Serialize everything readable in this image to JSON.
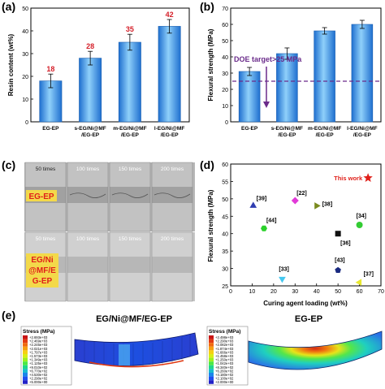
{
  "panel_letters": {
    "a": "(a)",
    "b": "(b)",
    "c": "(c)",
    "d": "(d)",
    "e": "(e)"
  },
  "colors": {
    "bar": "#2f86db",
    "bar_light": "#8cc6f5",
    "value_text": "#d5202a",
    "target_line": "#6a2b8a",
    "marker_star": "#e0201a"
  },
  "chart_data": [
    {
      "type": "bar",
      "categories": [
        "EG-EP",
        "s-EG/Ni@MF\n/EG-EP",
        "m-EG/Ni@MF\n/EG-EP",
        "l-EG/Ni@MF\n/EG-EP"
      ],
      "values": [
        18,
        28,
        35,
        42
      ],
      "errors": [
        3,
        3,
        3.5,
        3
      ],
      "data_labels": [
        "18",
        "28",
        "35",
        "42"
      ],
      "ylabel": "Resin content (wt%)",
      "ylim": [
        0,
        50
      ],
      "yticks": [
        "0",
        "10",
        "20",
        "30",
        "40",
        "50"
      ]
    },
    {
      "type": "bar",
      "categories": [
        "EG-EP",
        "s-EG/Ni@MF\n/EG-EP",
        "m-EG/Ni@MF\n/EG-EP",
        "l-EG/Ni@MF\n/EG-EP"
      ],
      "values": [
        31,
        42,
        56,
        60
      ],
      "errors": [
        2.5,
        3.5,
        2,
        2.5
      ],
      "ylabel": "Flexural strength (MPa)",
      "ylim": [
        0,
        70
      ],
      "yticks": [
        "0",
        "10",
        "20",
        "30",
        "40",
        "50",
        "60",
        "70"
      ],
      "target_value": 25,
      "target_label": "DOE target>25 MPa"
    },
    {
      "type": "scatter",
      "xlabel": "Curing agent loading (wt%)",
      "ylabel": "Flexural strength (MPa)",
      "xlim": [
        0,
        70
      ],
      "ylim": [
        25,
        60
      ],
      "xticks": [
        "0",
        "10",
        "20",
        "30",
        "40",
        "50",
        "60",
        "70"
      ],
      "yticks": [
        "25",
        "30",
        "35",
        "40",
        "45",
        "50",
        "55",
        "60"
      ],
      "points": [
        {
          "label": "This work",
          "x": 64,
          "y": 56,
          "color": "#e0201a",
          "shape": "star"
        },
        {
          "label": "[39]",
          "x": 10.5,
          "y": 48,
          "color": "#2f3db0",
          "shape": "triangle"
        },
        {
          "label": "[22]",
          "x": 30,
          "y": 49.5,
          "color": "#e23ad8",
          "shape": "diamond"
        },
        {
          "label": "[38]",
          "x": 40,
          "y": 48,
          "color": "#7a8a1e",
          "shape": "triangle-right"
        },
        {
          "label": "[44]",
          "x": 15.5,
          "y": 41.5,
          "color": "#2bd12b",
          "shape": "hexagon"
        },
        {
          "label": "[36]",
          "x": 50,
          "y": 40,
          "color": "#111111",
          "shape": "square"
        },
        {
          "label": "[34]",
          "x": 60,
          "y": 42.5,
          "color": "#33cc33",
          "shape": "circle"
        },
        {
          "label": "[33]",
          "x": 24,
          "y": 27,
          "color": "#44c8f0",
          "shape": "triangle-down"
        },
        {
          "label": "[43]",
          "x": 50,
          "y": 29.5,
          "color": "#1a2a80",
          "shape": "pentagon"
        },
        {
          "label": "[37]",
          "x": 60,
          "y": 26,
          "color": "#e8e830",
          "shape": "triangle-left"
        }
      ]
    }
  ],
  "panel_c": {
    "top_labels": [
      "50 times",
      "100 times",
      "150 times",
      "200 times"
    ],
    "bottom_labels": [
      "50 times",
      "100 times",
      "150 times",
      "200 times"
    ],
    "top_badge": "EG-EP",
    "bottom_badge_lines": [
      "EG/Ni",
      "@MF/E",
      "G-EP"
    ]
  },
  "panel_e": {
    "left_title": "EG/Ni@MF/EG-EP",
    "right_title": "EG-EP",
    "legend_title": "Stress (MPa)",
    "left_legend_values": [
      "+2.693e+03",
      "+2.469e+03",
      "+2.245e+03",
      "+2.021e+03",
      "+1.797e+03",
      "+1.573e+03",
      "+1.349e+03",
      "+1.125e+03",
      "+9.010e+02",
      "+6.770e+02",
      "+4.530e+02",
      "+2.290e+02",
      "+5.000e+00"
    ],
    "right_legend_values": [
      "+2.498e+03",
      "+2.290e+03",
      "+2.082e+03",
      "+1.874e+03",
      "+1.666e+03",
      "+1.458e+03",
      "+1.250e+03",
      "+1.042e+03",
      "+8.340e+02",
      "+6.260e+02",
      "+4.180e+02",
      "+2.100e+02",
      "+2.000e+00"
    ],
    "legend_colors": [
      "#c81414",
      "#e23a12",
      "#f06a10",
      "#f6a010",
      "#f5d012",
      "#d9ee14",
      "#9ef01e",
      "#4ce844",
      "#1ed889",
      "#18bccf",
      "#1a86ea",
      "#1e4ff0",
      "#2222c8"
    ]
  }
}
